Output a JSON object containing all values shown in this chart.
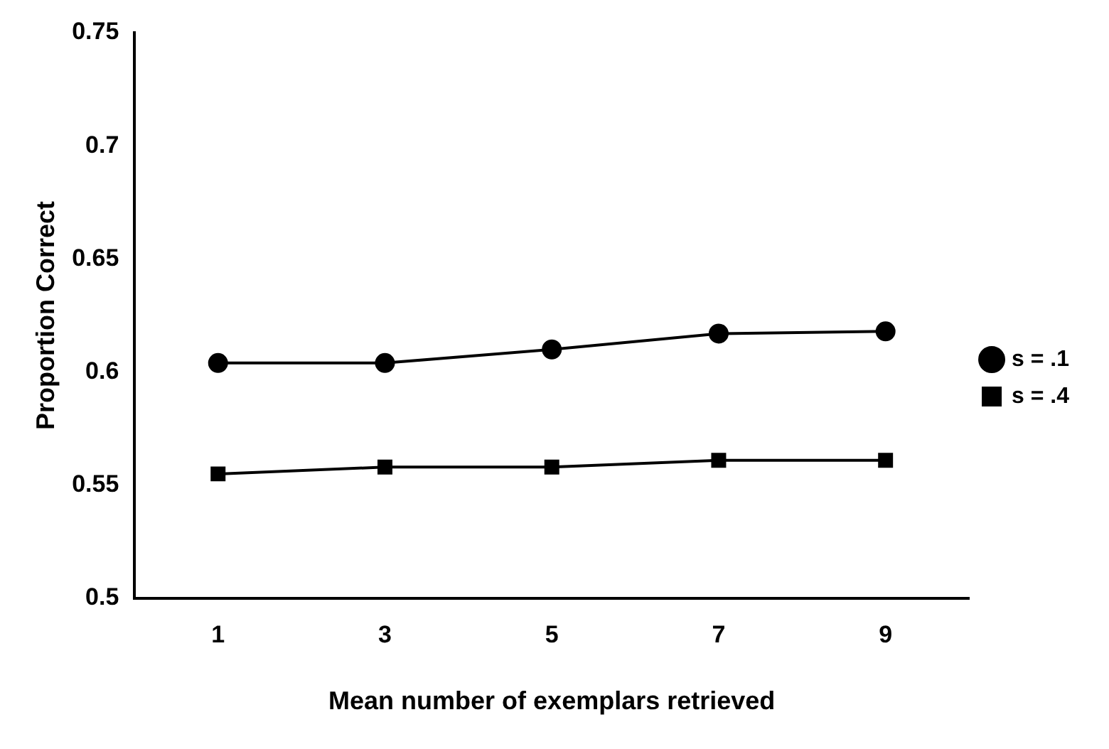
{
  "chart_data": {
    "type": "line",
    "xlabel": "Mean number of exemplars retrieved",
    "ylabel": "Proportion Correct",
    "categories": [
      "1",
      "3",
      "5",
      "7",
      "9"
    ],
    "series": [
      {
        "name": "s = .1",
        "color": "#000000",
        "marker": "circle",
        "values": [
          0.604,
          0.604,
          0.61,
          0.617,
          0.618
        ]
      },
      {
        "name": "s = .4",
        "color": "#000000",
        "marker": "square",
        "values": [
          0.555,
          0.558,
          0.558,
          0.561,
          0.561
        ]
      }
    ],
    "ylim": [
      0.5,
      0.75
    ],
    "yticks": [
      0.5,
      0.55,
      0.6,
      0.65,
      0.7,
      0.75
    ],
    "grid": false,
    "legend": "right",
    "line_style": "solid"
  }
}
